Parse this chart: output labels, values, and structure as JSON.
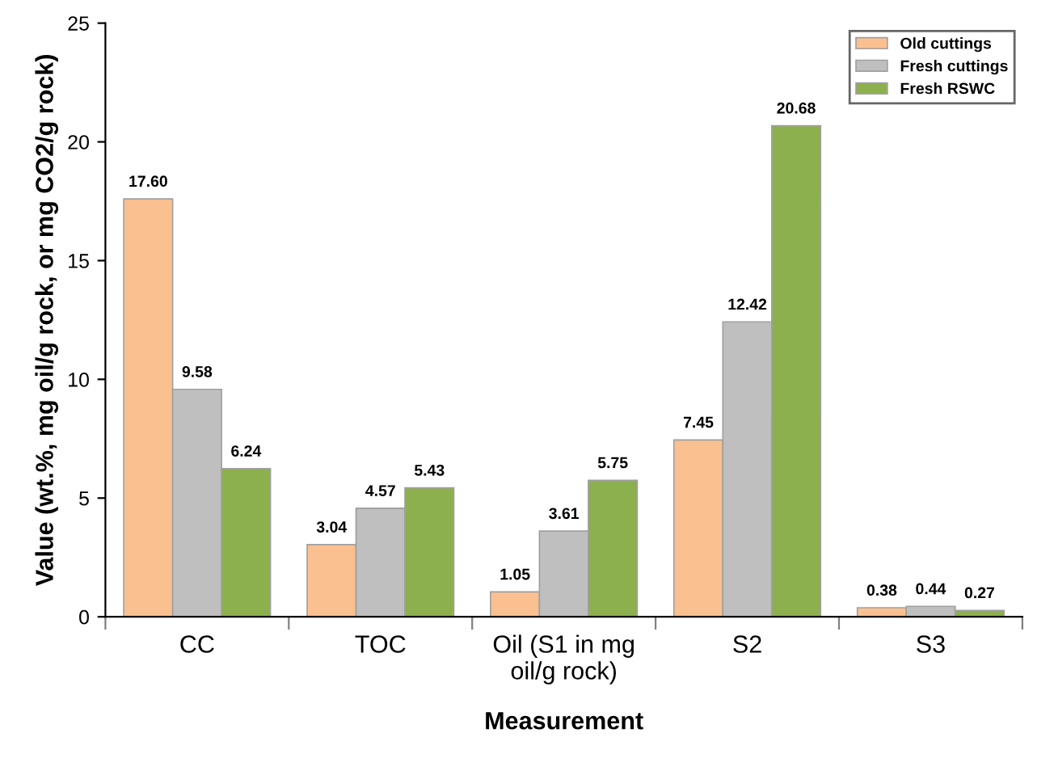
{
  "chart_data": {
    "type": "bar",
    "xlabel": "Measurement",
    "ylabel": "Value (wt.%, mg oil/g rock, or mg CO2/g rock)",
    "categories": [
      "CC",
      "TOC",
      "Oil (S1 in mg\noil/g rock)",
      "S2",
      "S3"
    ],
    "series": [
      {
        "name": "Old cuttings",
        "color": "#fac090",
        "values": [
          17.6,
          3.04,
          1.05,
          7.45,
          0.38
        ],
        "value_labels": [
          "17.60",
          "3.04",
          "1.05",
          "7.45",
          "0.38"
        ]
      },
      {
        "name": "Fresh cuttings",
        "color": "#bfbfbf",
        "values": [
          9.58,
          4.57,
          3.61,
          12.42,
          0.44
        ],
        "value_labels": [
          "9.58",
          "4.57",
          "3.61",
          "12.42",
          "0.44"
        ]
      },
      {
        "name": "Fresh RSWC",
        "color": "#8db04e",
        "values": [
          6.24,
          5.43,
          5.75,
          20.68,
          0.27
        ],
        "value_labels": [
          "6.24",
          "5.43",
          "5.75",
          "20.68",
          "0.27"
        ]
      }
    ],
    "ylim": [
      0,
      25
    ],
    "yticks": [
      0,
      5,
      10,
      15,
      20,
      25
    ],
    "grid": false,
    "legend": "top right"
  }
}
